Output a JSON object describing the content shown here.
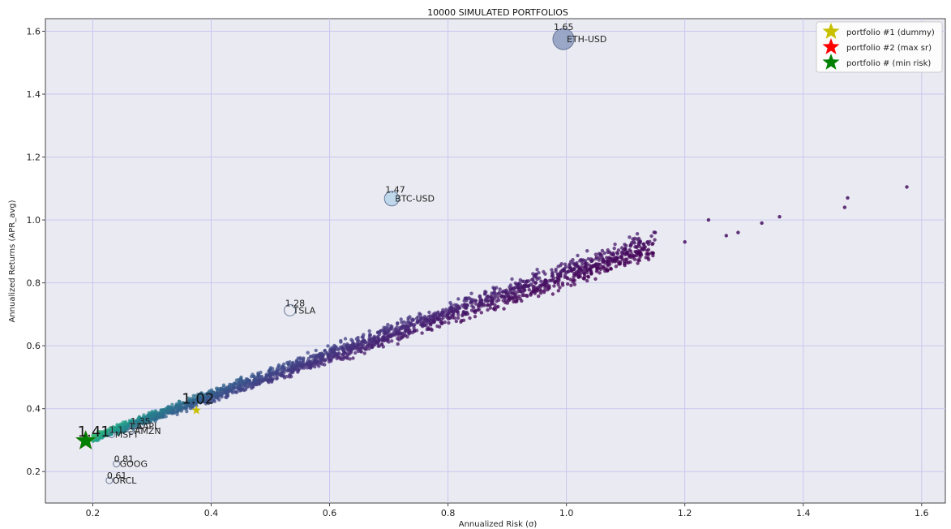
{
  "chart_data": {
    "type": "scatter",
    "title": "10000 SIMULATED PORTFOLIOS",
    "xlabel": "Annualized Risk (σ)",
    "ylabel": "Annualized Returns (APR_avg)",
    "xlim": [
      0.12,
      1.64
    ],
    "ylim": [
      0.1,
      1.64
    ],
    "xticks": [
      0.2,
      0.4,
      0.6,
      0.8,
      1.0,
      1.2,
      1.4,
      1.6
    ],
    "xtick_labels": [
      "0.2",
      "0.4",
      "0.6",
      "0.8",
      "1.0",
      "1.2",
      "1.4",
      "1.6"
    ],
    "yticks": [
      0.2,
      0.4,
      0.6,
      0.8,
      1.0,
      1.2,
      1.4,
      1.6
    ],
    "ytick_labels": [
      "0.2",
      "0.4",
      "0.6",
      "0.8",
      "1.0",
      "1.2",
      "1.4",
      "1.6"
    ],
    "grid": true,
    "legend_position": "top-right",
    "colormap": "viridis",
    "simulated_portfolios": {
      "count": 10000,
      "trend": [
        [
          0.19,
          0.3
        ],
        [
          0.4,
          0.44
        ],
        [
          0.6,
          0.57
        ],
        [
          0.8,
          0.7
        ],
        [
          1.0,
          0.83
        ],
        [
          1.2,
          0.95
        ],
        [
          1.4,
          1.02
        ],
        [
          1.57,
          1.1
        ]
      ],
      "outliers": [
        [
          1.15,
          0.96
        ],
        [
          1.2,
          0.93
        ],
        [
          1.24,
          1.0
        ],
        [
          1.27,
          0.95
        ],
        [
          1.29,
          0.96
        ],
        [
          1.33,
          0.99
        ],
        [
          1.36,
          1.01
        ],
        [
          1.47,
          1.04
        ],
        [
          1.475,
          1.07
        ],
        [
          1.575,
          1.105
        ]
      ]
    },
    "assets": [
      {
        "name": "ETH-USD",
        "value_label": "1.65",
        "x": 0.995,
        "y": 1.575,
        "size": 13
      },
      {
        "name": "BTC-USD",
        "value_label": "1.47",
        "x": 0.705,
        "y": 1.068,
        "size": 9
      },
      {
        "name": "TSLA",
        "value_label": "1.28",
        "x": 0.533,
        "y": 0.713,
        "size": 7
      },
      {
        "name": "GOOG",
        "value_label": "0.81",
        "x": 0.24,
        "y": 0.225,
        "size": 4
      },
      {
        "name": "ORCL",
        "value_label": "0.61",
        "x": 0.228,
        "y": 0.172,
        "size": 4
      },
      {
        "name": "AAPL",
        "value_label": "1.35",
        "x": 0.268,
        "y": 0.345,
        "size": 4
      },
      {
        "name": "AMZN",
        "value_label": "1.1",
        "x": 0.265,
        "y": 0.33,
        "size": 4
      },
      {
        "name": "MSFT",
        "value_label": "1.1",
        "x": 0.232,
        "y": 0.318,
        "size": 4
      }
    ],
    "highlighted_portfolios": [
      {
        "name": "portfolio #1 (dummy)",
        "x": 0.375,
        "y": 0.395,
        "color": "#c8c000",
        "label": "1.02"
      },
      {
        "name": "portfolio #2 (max sr)",
        "x": 0.188,
        "y": 0.298,
        "color": "#ff0000",
        "label": ""
      },
      {
        "name": "portfolio # (min risk)",
        "x": 0.188,
        "y": 0.298,
        "color": "#008000",
        "label": "1.41"
      }
    ],
    "legend": [
      {
        "label": "portfolio #1 (dummy)",
        "color": "#c8c000"
      },
      {
        "label": "portfolio #2 (max sr)",
        "color": "#ff0000"
      },
      {
        "label": "portfolio # (min risk)",
        "color": "#008000"
      }
    ]
  }
}
